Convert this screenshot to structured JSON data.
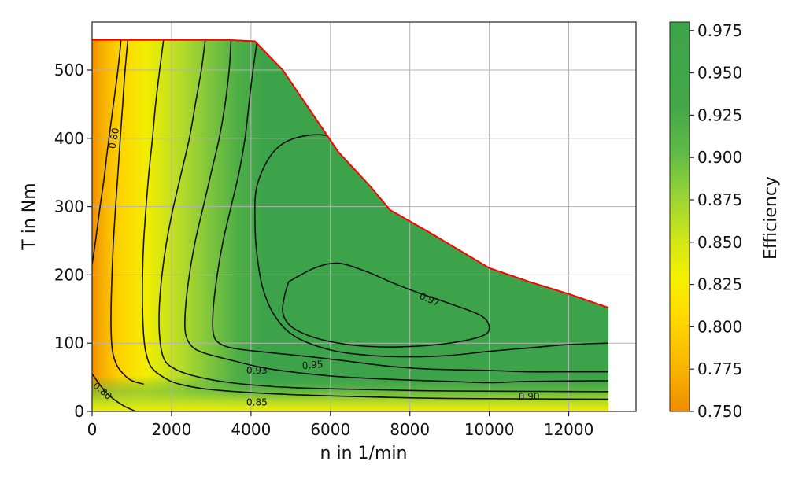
{
  "chart_data": {
    "type": "contour",
    "title": "",
    "xlabel": "n in 1/min",
    "ylabel": "T in Nm",
    "xlim": [
      0,
      13800
    ],
    "ylim": [
      0,
      570
    ],
    "xticks": [
      "0",
      "2000",
      "4000",
      "6000",
      "8000",
      "10000",
      "12000"
    ],
    "xtick_values": [
      0,
      2000,
      4000,
      6000,
      8000,
      10000,
      12000
    ],
    "yticks": [
      "0",
      "100",
      "200",
      "300",
      "400",
      "500"
    ],
    "ytick_values": [
      0,
      100,
      200,
      300,
      400,
      500
    ],
    "grid": true,
    "colorbar": {
      "label": "Efficiency",
      "range": [
        0.75,
        0.98
      ],
      "ticks": [
        "0.750",
        "0.775",
        "0.800",
        "0.825",
        "0.850",
        "0.875",
        "0.900",
        "0.925",
        "0.950",
        "0.975"
      ],
      "tick_values": [
        0.75,
        0.775,
        0.8,
        0.825,
        0.85,
        0.875,
        0.9,
        0.925,
        0.95,
        0.975
      ],
      "colormap": [
        "#f08c00",
        "#ffd400",
        "#f6f000",
        "#b4de2a",
        "#6cc04a",
        "#3da34a"
      ]
    },
    "max_torque_curve": {
      "color": "#ff0000",
      "points": [
        [
          0,
          544
        ],
        [
          3400,
          544
        ],
        [
          4100,
          542
        ],
        [
          4800,
          500
        ],
        [
          6200,
          380
        ],
        [
          7000,
          330
        ],
        [
          7500,
          295
        ],
        [
          8500,
          262
        ],
        [
          10000,
          210
        ],
        [
          11000,
          190
        ],
        [
          12000,
          172
        ],
        [
          13000,
          152
        ]
      ]
    },
    "contours": [
      {
        "level": "0.80",
        "points": [
          [
            0,
            215
          ],
          [
            100,
            255
          ],
          [
            200,
            300
          ],
          [
            300,
            340
          ],
          [
            380,
            380
          ],
          [
            470,
            420
          ],
          [
            560,
            460
          ],
          [
            650,
            500
          ],
          [
            730,
            544
          ]
        ]
      },
      {
        "level": "0.80",
        "points": [
          [
            0,
            55
          ],
          [
            250,
            35
          ],
          [
            500,
            20
          ],
          [
            800,
            8
          ],
          [
            1100,
            0
          ]
        ]
      },
      {
        "level": "",
        "points": [
          [
            900,
            544
          ],
          [
            830,
            500
          ],
          [
            770,
            450
          ],
          [
            710,
            400
          ],
          [
            640,
            340
          ],
          [
            580,
            290
          ],
          [
            530,
            240
          ],
          [
            490,
            180
          ],
          [
            475,
            130
          ],
          [
            510,
            90
          ],
          [
            620,
            68
          ],
          [
            800,
            54
          ],
          [
            1000,
            45
          ],
          [
            1300,
            40
          ]
        ]
      },
      {
        "level": "",
        "points": [
          [
            1800,
            544
          ],
          [
            1700,
            500
          ],
          [
            1600,
            450
          ],
          [
            1520,
            400
          ],
          [
            1430,
            350
          ],
          [
            1360,
            300
          ],
          [
            1300,
            250
          ],
          [
            1270,
            200
          ],
          [
            1270,
            150
          ],
          [
            1300,
            110
          ],
          [
            1360,
            85
          ],
          [
            1500,
            64
          ],
          [
            1800,
            50
          ],
          [
            2200,
            40
          ],
          [
            3000,
            32
          ],
          [
            4500,
            26
          ],
          [
            6500,
            22
          ],
          [
            9000,
            19
          ],
          [
            13000,
            18
          ]
        ]
      },
      {
        "level": "",
        "points": [
          [
            2850,
            544
          ],
          [
            2750,
            500
          ],
          [
            2600,
            450
          ],
          [
            2450,
            400
          ],
          [
            2250,
            350
          ],
          [
            2050,
            300
          ],
          [
            1880,
            250
          ],
          [
            1760,
            200
          ],
          [
            1690,
            150
          ],
          [
            1700,
            110
          ],
          [
            1790,
            80
          ],
          [
            2000,
            65
          ],
          [
            2500,
            53
          ],
          [
            3500,
            42
          ],
          [
            5000,
            35
          ],
          [
            7000,
            32
          ],
          [
            9000,
            30
          ],
          [
            13000,
            29
          ]
        ]
      },
      {
        "level": "",
        "points": [
          [
            3500,
            544
          ],
          [
            3450,
            500
          ],
          [
            3350,
            450
          ],
          [
            3200,
            400
          ],
          [
            3000,
            350
          ],
          [
            2800,
            300
          ],
          [
            2600,
            250
          ],
          [
            2450,
            200
          ],
          [
            2350,
            150
          ],
          [
            2350,
            115
          ],
          [
            2500,
            96
          ],
          [
            2800,
            86
          ],
          [
            3500,
            75
          ],
          [
            4500,
            62
          ],
          [
            6000,
            52
          ],
          [
            7500,
            47
          ],
          [
            9000,
            44
          ],
          [
            10000,
            42
          ],
          [
            11000,
            44
          ],
          [
            13000,
            45
          ]
        ]
      },
      {
        "level": "",
        "points": [
          [
            4150,
            540
          ],
          [
            4050,
            500
          ],
          [
            3950,
            450
          ],
          [
            3850,
            400
          ],
          [
            3700,
            350
          ],
          [
            3500,
            300
          ],
          [
            3300,
            250
          ],
          [
            3150,
            200
          ],
          [
            3050,
            150
          ],
          [
            3050,
            115
          ],
          [
            3200,
            100
          ],
          [
            3600,
            92
          ],
          [
            4500,
            86
          ],
          [
            5500,
            80
          ],
          [
            6500,
            73
          ],
          [
            7500,
            66
          ],
          [
            8500,
            62
          ],
          [
            10000,
            60
          ],
          [
            11000,
            58
          ],
          [
            12000,
            58
          ],
          [
            13000,
            58
          ]
        ]
      },
      {
        "level": "",
        "points": [
          [
            8100,
            278
          ],
          [
            7700,
            300
          ],
          [
            7300,
            325
          ],
          [
            6900,
            355
          ],
          [
            6400,
            390
          ],
          [
            5800,
            405
          ],
          [
            5000,
            398
          ],
          [
            4500,
            375
          ],
          [
            4150,
            330
          ],
          [
            4100,
            280
          ],
          [
            4150,
            230
          ],
          [
            4300,
            180
          ],
          [
            4600,
            140
          ],
          [
            5100,
            110
          ],
          [
            6000,
            90
          ],
          [
            7000,
            82
          ],
          [
            8000,
            80
          ],
          [
            9000,
            82
          ],
          [
            10000,
            88
          ],
          [
            11000,
            93
          ],
          [
            12000,
            98
          ],
          [
            13000,
            100
          ]
        ]
      },
      {
        "level": "0.97",
        "points": [
          [
            4950,
            190
          ],
          [
            5600,
            210
          ],
          [
            6200,
            217
          ],
          [
            6900,
            205
          ],
          [
            7500,
            190
          ],
          [
            8200,
            174
          ],
          [
            9000,
            158
          ],
          [
            9800,
            140
          ],
          [
            10000,
            122
          ],
          [
            9800,
            110
          ],
          [
            9000,
            100
          ],
          [
            8000,
            95
          ],
          [
            7000,
            95
          ],
          [
            6200,
            100
          ],
          [
            5500,
            110
          ],
          [
            5000,
            125
          ],
          [
            4800,
            145
          ],
          [
            4850,
            170
          ],
          [
            4950,
            190
          ]
        ]
      }
    ],
    "contour_labels": [
      {
        "text": "0.80",
        "at": [
          550,
          400
        ],
        "rotate": -80
      },
      {
        "text": "0.80",
        "at": [
          260,
          30
        ],
        "rotate": 40
      },
      {
        "text": "0.85",
        "at": [
          4150,
          13
        ],
        "rotate": 0
      },
      {
        "text": "0.90",
        "at": [
          11000,
          22
        ],
        "rotate": 0
      },
      {
        "text": "0.93",
        "at": [
          4150,
          60
        ],
        "rotate": 0
      },
      {
        "text": "0.95",
        "at": [
          5550,
          68
        ],
        "rotate": -5
      },
      {
        "text": "0.97",
        "at": [
          8500,
          164
        ],
        "rotate": 22
      }
    ]
  }
}
